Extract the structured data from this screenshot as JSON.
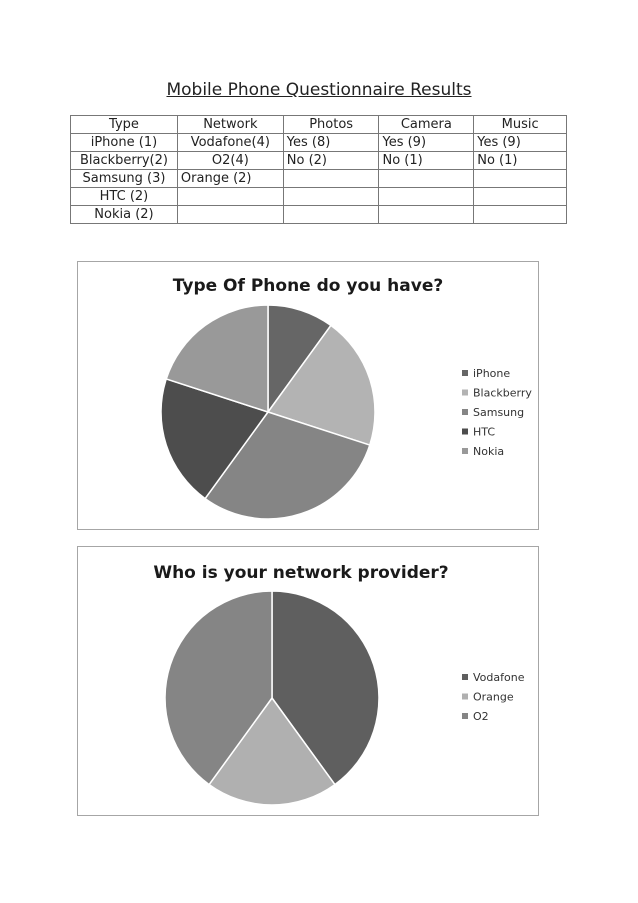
{
  "document": {
    "title": "Mobile Phone Questionnaire Results"
  },
  "table": {
    "headers": [
      "Type",
      "Network",
      "Photos",
      "Camera",
      "Music"
    ],
    "rows": [
      [
        "iPhone (1)",
        "Vodafone(4)",
        "Yes (8)",
        "Yes (9)",
        "Yes (9)"
      ],
      [
        "Blackberry(2)",
        "O2(4)",
        "No (2)",
        "No (1)",
        "No (1)"
      ],
      [
        "Samsung (3)",
        "Orange (2)",
        "",
        "",
        ""
      ],
      [
        "HTC (2)",
        "",
        "",
        "",
        ""
      ],
      [
        "Nokia (2)",
        "",
        "",
        "",
        ""
      ]
    ]
  },
  "chart_data": [
    {
      "type": "pie",
      "title": "Type Of Phone do you have?",
      "categories": [
        "iPhone",
        "Blackberry",
        "Samsung",
        "HTC",
        "Nokia"
      ],
      "values": [
        1,
        2,
        3,
        2,
        2
      ],
      "colors": [
        "#666666",
        "#b3b3b3",
        "#858585",
        "#4d4d4d",
        "#999999"
      ],
      "legend": "right"
    },
    {
      "type": "pie",
      "title": "Who is your network provider?",
      "categories": [
        "Vodafone",
        "Orange",
        "O2"
      ],
      "values": [
        4,
        2,
        4
      ],
      "colors": [
        "#5f5f5f",
        "#b0b0b0",
        "#858585"
      ],
      "legend": "right"
    }
  ]
}
